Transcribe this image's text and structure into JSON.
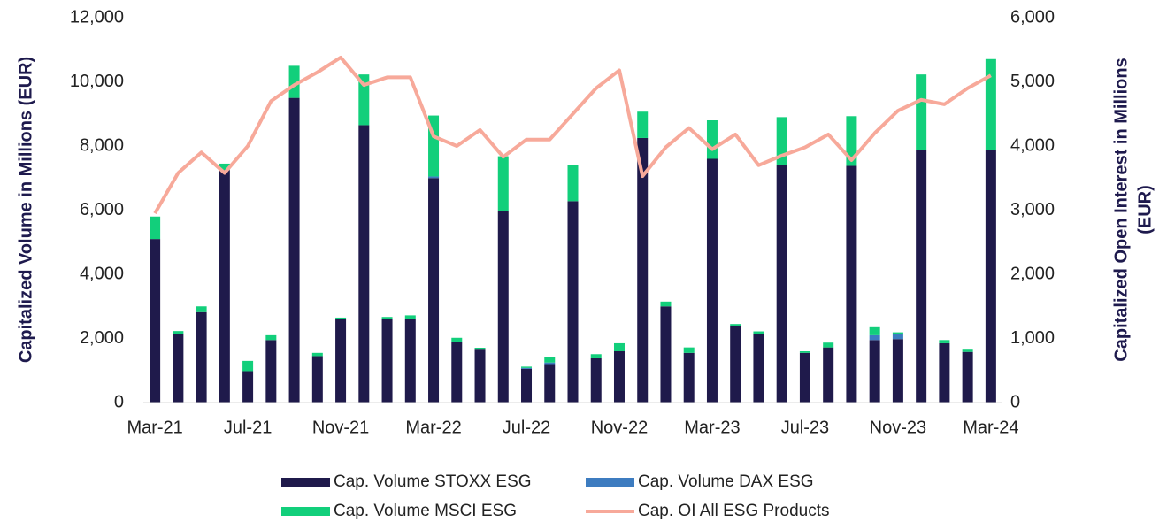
{
  "chart_data": {
    "type": "bar",
    "stacked": true,
    "ylabel": "Capitalized Volume in Millions (EUR)",
    "y2label": [
      "Capitalized Open Interest in Millions",
      "(EUR)"
    ],
    "categories": [
      "Mar-21",
      null,
      null,
      null,
      "Jul-21",
      null,
      null,
      null,
      "Nov-21",
      null,
      null,
      null,
      "Mar-22",
      null,
      null,
      null,
      "Jul-22",
      null,
      null,
      null,
      "Nov-22",
      null,
      null,
      null,
      "Mar-23",
      null,
      null,
      null,
      "Jul-23",
      null,
      null,
      null,
      "Nov-23",
      null,
      null,
      null,
      "Mar-24"
    ],
    "series": [
      {
        "name": "Cap. Volume STOXX ESG",
        "color": "#1f1a4b",
        "type": "bar",
        "values": [
          5100,
          2150,
          2820,
          7250,
          980,
          1950,
          9500,
          1450,
          2600,
          8650,
          2600,
          2600,
          7000,
          1900,
          1650,
          5980,
          1050,
          1200,
          6280,
          1380,
          1600,
          8250,
          3000,
          1550,
          7600,
          2380,
          2150,
          7420,
          1550,
          1720,
          7380,
          1950,
          1980,
          7880,
          1850,
          1580,
          7880
        ]
      },
      {
        "name": "Cap. Volume DAX ESG",
        "color": "#3d7cc0",
        "type": "bar",
        "values": [
          0,
          0,
          0,
          0,
          0,
          0,
          0,
          0,
          0,
          0,
          0,
          0,
          50,
          0,
          0,
          0,
          30,
          50,
          0,
          0,
          0,
          0,
          0,
          0,
          0,
          20,
          0,
          0,
          0,
          0,
          0,
          150,
          150,
          0,
          0,
          0,
          0
        ]
      },
      {
        "name": "Cap. Volume MSCI ESG",
        "color": "#12cf7b",
        "type": "bar",
        "values": [
          700,
          80,
          180,
          200,
          320,
          150,
          1000,
          100,
          50,
          1580,
          70,
          120,
          1900,
          120,
          60,
          1700,
          40,
          180,
          1120,
          130,
          250,
          820,
          150,
          170,
          1200,
          50,
          70,
          1480,
          50,
          150,
          1550,
          250,
          60,
          2350,
          100,
          70,
          2830
        ]
      },
      {
        "name": "Cap. OI All ESG Products",
        "color": "#f7a99a",
        "type": "line",
        "axis": "y2",
        "values": [
          2950,
          3580,
          3900,
          3580,
          4000,
          4700,
          4950,
          5150,
          5380,
          4950,
          5070,
          5070,
          4150,
          4000,
          4250,
          3830,
          4100,
          4100,
          4500,
          4900,
          5180,
          3530,
          3980,
          4280,
          3950,
          4180,
          3700,
          3850,
          3980,
          4180,
          3780,
          4200,
          4550,
          4720,
          4650,
          4900,
          5100
        ]
      }
    ],
    "ylim": [
      0,
      12000
    ],
    "yticks": [
      0,
      {
        "value": 2000,
        "label": "2,000"
      },
      {
        "value": 4000,
        "label": "4,000"
      },
      {
        "value": 6000,
        "label": "6,000"
      },
      {
        "value": 8000,
        "label": "8,000"
      },
      {
        "value": 10000,
        "label": "10,000"
      },
      {
        "value": 12000,
        "label": "12,000"
      }
    ],
    "y2lim": [
      0,
      6000
    ],
    "y2ticks": [
      0,
      {
        "value": 1000,
        "label": "1,000"
      },
      {
        "value": 2000,
        "label": "2,000"
      },
      {
        "value": 3000,
        "label": "3,000"
      },
      {
        "value": 4000,
        "label": "4,000"
      },
      {
        "value": 5000,
        "label": "5,000"
      },
      {
        "value": 6000,
        "label": "6,000"
      }
    ],
    "grid": false,
    "legend": "bottom"
  }
}
